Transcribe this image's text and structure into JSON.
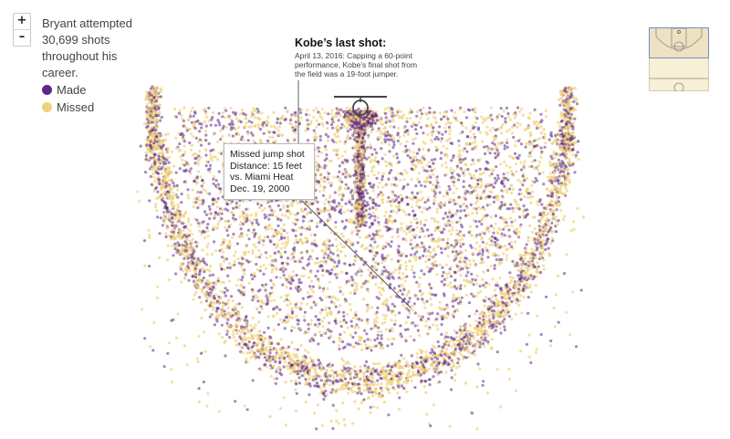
{
  "zoom": {
    "in_label": "+",
    "out_label": "–"
  },
  "intro": {
    "text": "Bryant attempted 30,699 shots throughout his career."
  },
  "legend": {
    "items": [
      {
        "label": "Made",
        "color": "#5b2a86"
      },
      {
        "label": "Missed",
        "color": "#f1d27b"
      }
    ]
  },
  "callout": {
    "title": "Kobe’s last shot:",
    "body": "April 13, 2016: Capping a 60-point performance, Kobe’s final shot from the field was a 19-foot jumper."
  },
  "tooltip": {
    "line1": "Missed jump shot",
    "line2": "Distance: 15 feet",
    "line3": "vs. Miami Heat",
    "line4": "Dec. 19, 2000"
  },
  "chart_data": {
    "type": "scatter",
    "title": "",
    "xlabel": "",
    "ylabel": "",
    "series": [
      {
        "name": "Made",
        "color": "#5b2a86"
      },
      {
        "name": "Missed",
        "color": "#f1d27b"
      }
    ],
    "total_attempts": 30699,
    "grid": false,
    "legend_position": "top-left",
    "highlighted_shots": [
      {
        "label": "Kobe’s last shot",
        "result": "Made",
        "distance_ft": 19,
        "date": "April 13, 2016"
      },
      {
        "label": "Missed jump shot",
        "result": "Missed",
        "distance_ft": 15,
        "opponent": "Miami Heat",
        "date": "Dec. 19, 2000"
      }
    ]
  }
}
